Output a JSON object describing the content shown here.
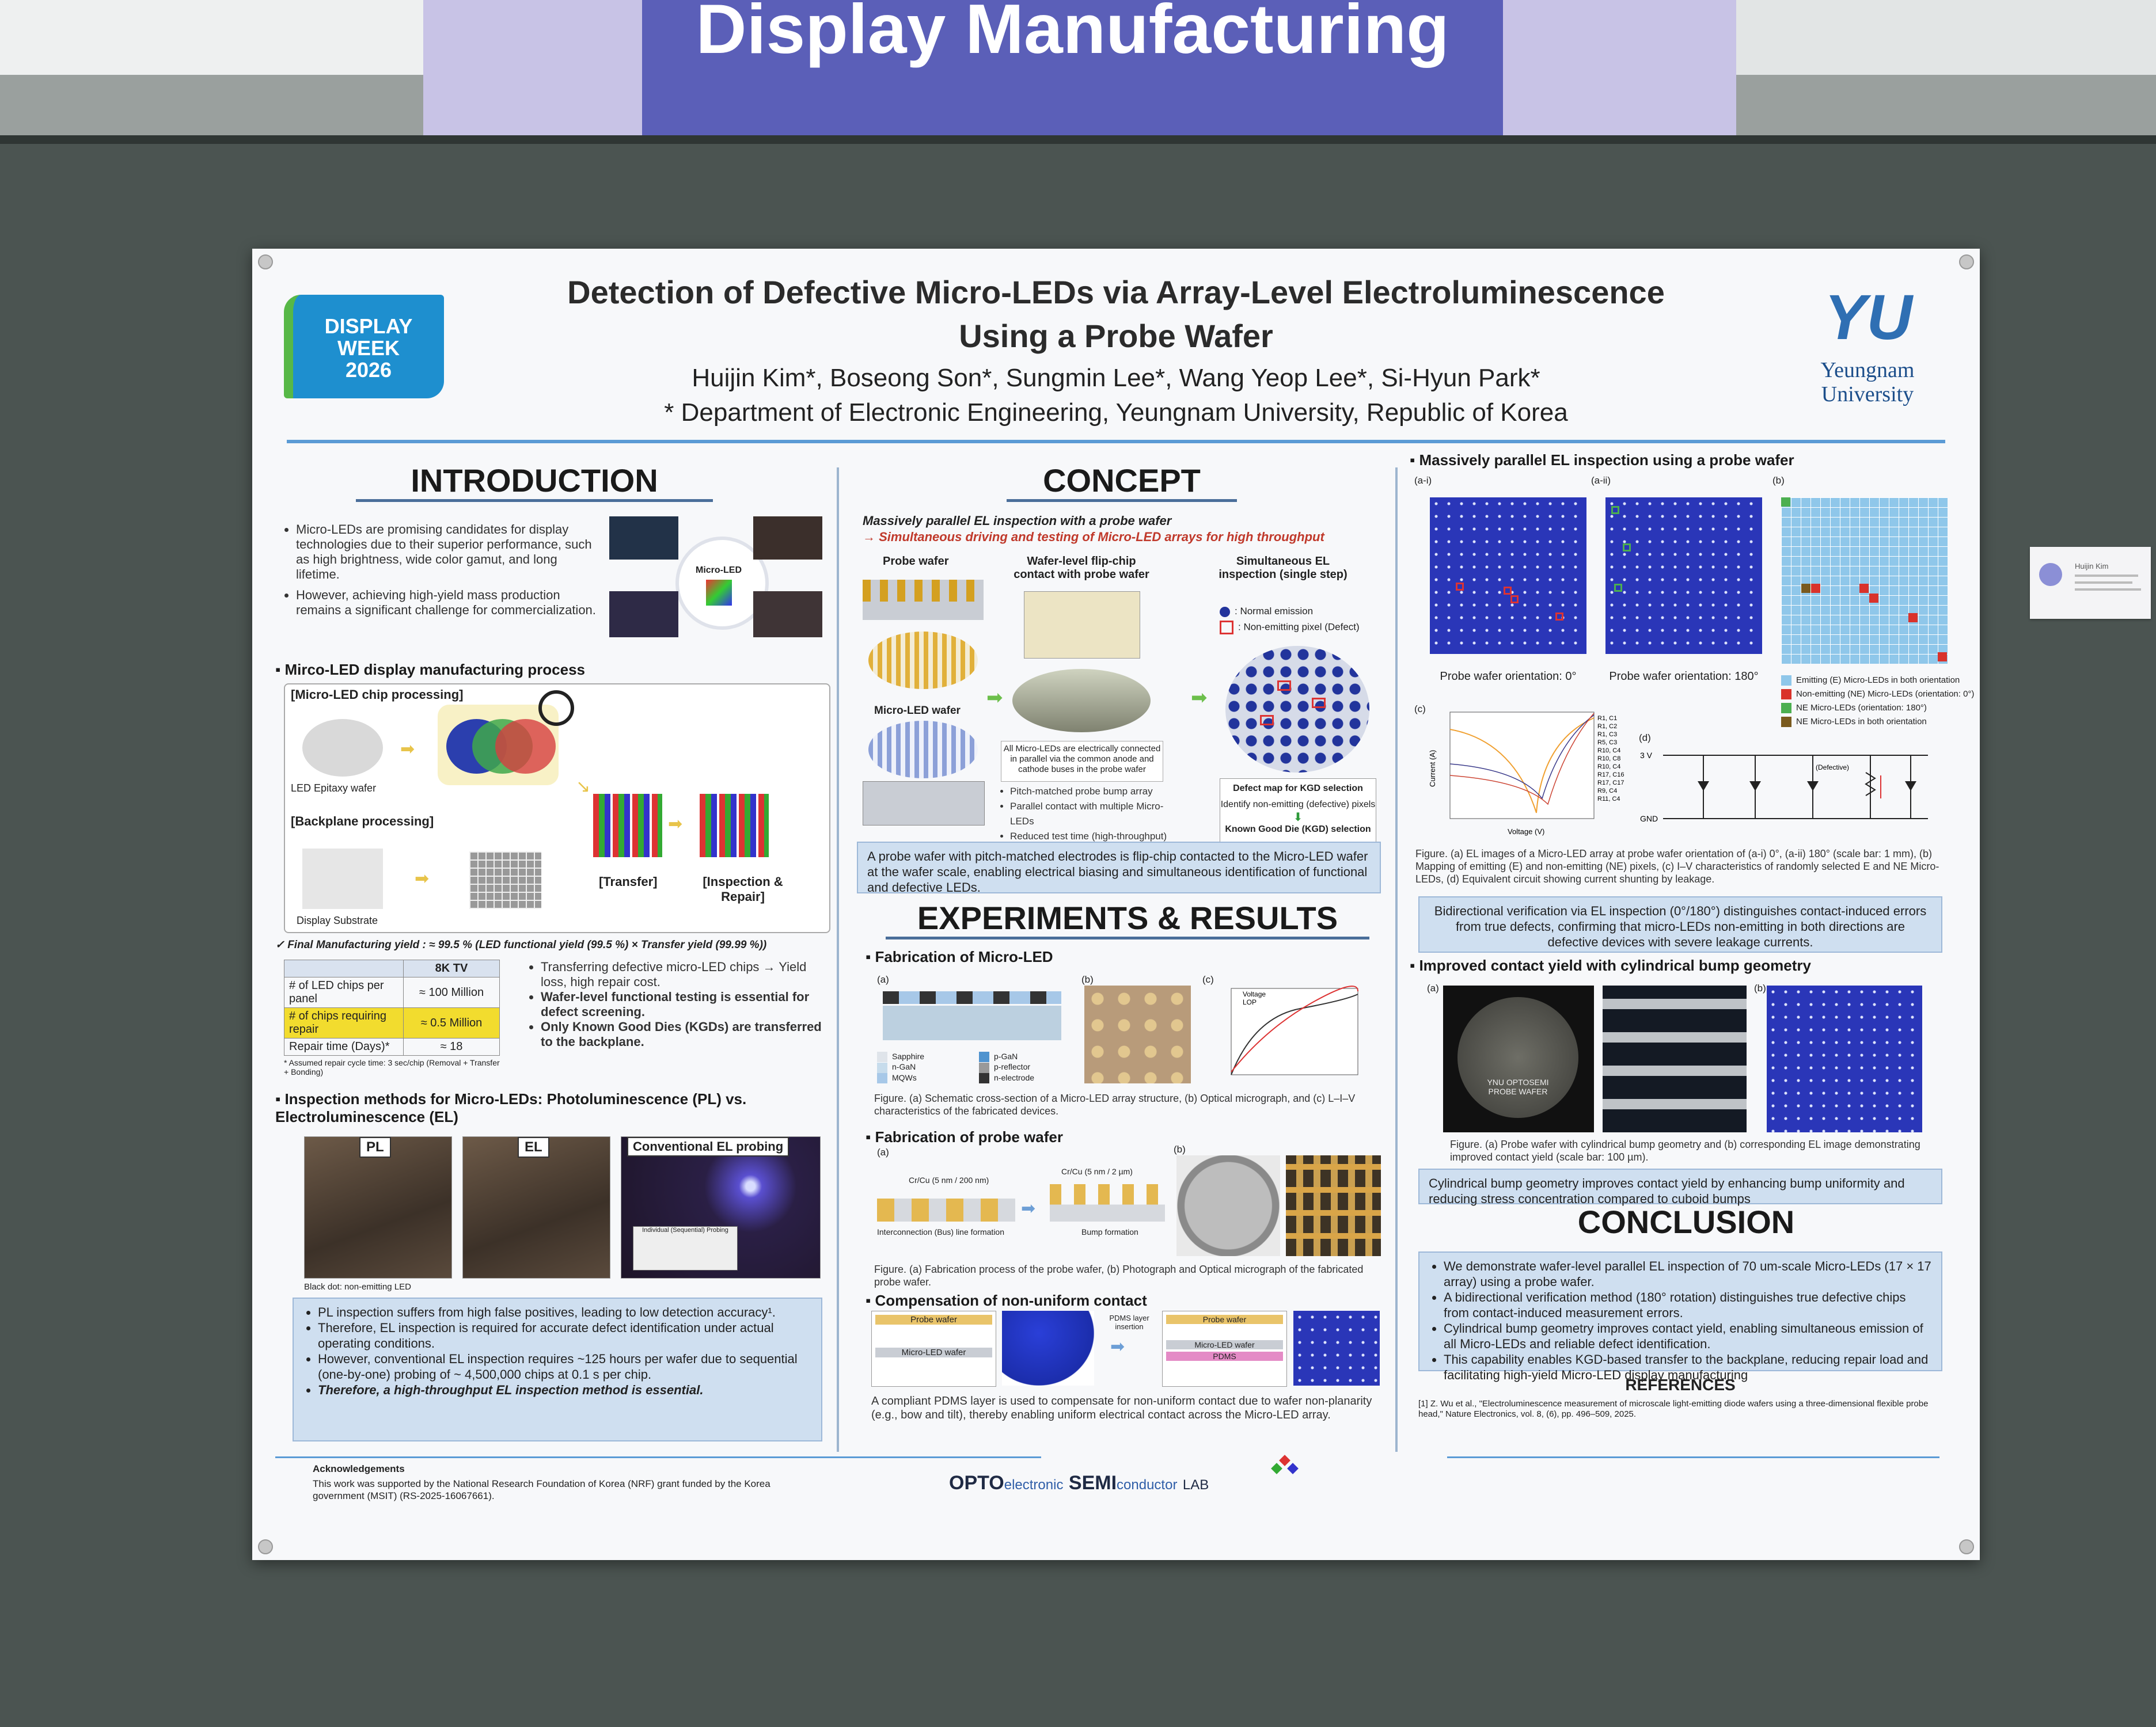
{
  "banner": {
    "title": "Display Manufacturing"
  },
  "poster": {
    "title_line1": "Detection of Defective Micro-LEDs via Array-Level Electroluminescence",
    "title_line2": "Using a Probe Wafer",
    "authors": "Huijin Kim*, Boseong Son*, Sungmin Lee*, Wang Yeop Lee*, Si-Hyun Park*",
    "affiliation": "* Department of Electronic Engineering, Yeungnam University, Republic of Korea",
    "logo_left": [
      "DISPLAY",
      "WEEK",
      "2026"
    ],
    "logo_right_mark": "YU",
    "logo_right_name": [
      "Yeungnam",
      "University"
    ]
  },
  "introduction": {
    "heading": "INTRODUCTION",
    "bullets": [
      "Micro-LEDs are promising candidates for display technologies due to their superior performance, such as high brightness, wide color gamut, and long lifetime.",
      "However, achieving high-yield mass production remains a significant challenge for commercialization."
    ],
    "center_label": "Micro-LED",
    "process_heading": "Mirco-LED display manufacturing process",
    "chip_processing": "[Micro-LED chip processing]",
    "epitaxy_label": "LED Epitaxy wafer",
    "backplane_processing": "[Backplane processing]",
    "display_substrate": "Display Substrate",
    "transfer_label": "[Transfer]",
    "inspection_label": "[Inspection & Repair]",
    "final_yield": "✓ Final Manufacturing yield : ≈ 99.5 % (LED functional yield (99.5 %) × Transfer yield (99.99 %))",
    "table": {
      "header": [
        "",
        "8K TV"
      ],
      "rows": [
        [
          "# of LED chips per panel",
          "≈ 100 Million"
        ],
        [
          "# of chips requiring repair",
          "≈ 0.5 Million"
        ],
        [
          "Repair time (Days)*",
          "≈ 18"
        ]
      ],
      "footnote": "* Assumed repair cycle time: 3 sec/chip (Removal + Transfer + Bonding)"
    },
    "side_bullets": [
      "Transferring defective micro-LED chips → Yield loss, high repair cost.",
      "Wafer-level functional testing is essential for defect screening.",
      "Only Known Good Dies (KGDs) are transferred to the backplane."
    ],
    "inspection_heading": "Inspection methods for Micro-LEDs: Photoluminescence (PL) vs. Electroluminescence (EL)",
    "panel_labels": [
      "PL",
      "EL",
      "Conventional EL probing"
    ],
    "probing_label": "Individual (Sequential) Probing",
    "black_dot_note": "Black dot: non-emitting LED",
    "box_bullets": [
      "PL inspection suffers from high false positives, leading to low detection accuracy¹.",
      "Therefore, EL inspection is required for accurate defect identification under actual operating conditions.",
      "However, conventional EL inspection requires ~125 hours per wafer due to sequential (one-by-one) probing of ~ 4,500,000 chips at 0.1 s per chip.",
      "Therefore, a high-throughput EL inspection method is essential."
    ],
    "ack_title": "Acknowledgements",
    "ack_text": "This work was supported by the National Research Foundation of Korea (NRF) grant funded by the Korea government (MSIT) (RS-2025-16067661)."
  },
  "concept": {
    "heading": "CONCEPT",
    "subtitle1": "Massively parallel EL inspection with a probe wafer",
    "subtitle2": "→ Simultaneous driving and testing of Micro-LED arrays for high throughput",
    "col_labels": [
      "Probe wafer",
      "Wafer-level flip-chip contact with probe wafer",
      "Simultaneous EL inspection (single step)"
    ],
    "microled_wafer": "Micro-LED wafer",
    "legend_normal": ": Normal emission",
    "legend_defect": ": Non-emitting pixel (Defect)",
    "note": "All Micro-LEDs are electrically connected in parallel via the common anode and cathode buses in the probe wafer",
    "features": [
      "Pitch-matched probe bump array",
      "Parallel contact with multiple Micro-LEDs",
      "Reduced test time (high-throughput)"
    ],
    "kgd_title": "Defect map for KGD selection",
    "kgd_step": "Identify non-emitting (defective) pixels",
    "kgd_result": "Known Good Die (KGD) selection",
    "summary": "A probe wafer with pitch-matched electrodes is flip-chip contacted to the Micro-LED wafer at the wafer scale, enabling electrical biasing and simultaneous identification of functional and defective LEDs."
  },
  "experiments": {
    "heading": "EXPERIMENTS & RESULTS",
    "fab_led": "Fabrication of Micro-LED",
    "layers": [
      "Sapphire",
      "n-GaN",
      "MQWs",
      "p-GaN",
      "p-reflector",
      "n-electrode"
    ],
    "liv_legend": [
      "Voltage",
      "LOP"
    ],
    "fig1": "Figure. (a) Schematic cross-section of a Micro-LED array structure, (b) Optical micrograph, and (c) L–I–V characteristics of the fabricated devices.",
    "fab_probe": "Fabrication of probe wafer",
    "probe_labels": [
      "Cr/Cu (5 nm / 200 nm)",
      "Cr/Cu (5 nm / 2 µm)",
      "Interconnection (Bus) line formation",
      "Bump formation"
    ],
    "fig2": "Figure. (a) Fabrication process of the probe wafer, (b) Photograph and Optical micrograph of the fabricated probe wafer.",
    "compensation": "Compensation of non-uniform contact",
    "comp_labels": [
      "Probe wafer",
      "Micro-LED wafer",
      "PDMS layer insertion",
      "Probe wafer",
      "Micro-LED wafer",
      "PDMS"
    ],
    "comp_text": "A compliant PDMS layer is used to compensate for non-uniform contact due to wafer non-planarity (e.g., bow and tilt), thereby enabling uniform electrical contact across the Micro-LED array."
  },
  "results": {
    "heading": "Massively parallel EL inspection using a probe wafer",
    "panel_tags": [
      "(a-i)",
      "(a-ii)",
      "(b)",
      "(c)",
      "(d)"
    ],
    "orient0": "Probe wafer orientation: 0°",
    "orient180": "Probe wafer orientation: 180°",
    "map_legend": [
      "Emitting (E) Micro-LEDs in both orientation",
      "Non-emitting (NE) Micro-LEDs (orientation: 0°)",
      "NE Micro-LEDs (orientation: 180°)",
      "NE Micro-LEDs in both orientation"
    ],
    "map_legend_colors": [
      "#8fc7ea",
      "#d9322b",
      "#4caf50",
      "#7a5a1e"
    ],
    "iv_legend": [
      "R1, C1",
      "R1, C2",
      "R1, C3",
      "R5, C3",
      "R10, C4",
      "R10, C8",
      "R10, C4",
      "R17, C16",
      "R17, C17",
      "R9, C4",
      "R11, C4"
    ],
    "iv_xlabel": "Voltage (V)",
    "iv_ylabel": "Current (A)",
    "circuit_labels": [
      "3 V",
      "GND",
      "(Defective)"
    ],
    "fig3": "Figure. (a) EL images of a Micro-LED array at probe wafer orientation of (a-i) 0°, (a-ii) 180° (scale bar: 1 mm), (b) Mapping of emitting (E) and non-emitting (NE) pixels, (c) I–V characteristics of randomly selected E and NE Micro-LEDs, (d) Equivalent circuit showing current shunting by leakage.",
    "bidir_box": "Bidirectional verification via EL inspection (0°/180°) distinguishes contact-induced errors from true defects, confirming that micro-LEDs non-emitting in both directions are defective devices with severe leakage currents.",
    "bump_heading": "Improved contact yield with cylindrical bump geometry",
    "wafer_text": [
      "YNU OPTOSEMI",
      "PROBE WAFER"
    ],
    "fig4": "Figure. (a) Probe wafer with cylindrical bump geometry and (b) corresponding EL image demonstrating improved contact yield (scale bar: 100 µm).",
    "bump_box": "Cylindrical bump geometry improves contact yield by enhancing bump uniformity and reducing stress concentration compared to cuboid bumps"
  },
  "conclusion": {
    "heading": "CONCLUSION",
    "bullets": [
      "We demonstrate wafer-level parallel EL inspection of 70 um-scale Micro-LEDs (17 × 17 array) using a probe wafer.",
      "A bidirectional verification method (180° rotation) distinguishes true defective chips from contact-induced measurement errors.",
      "Cylindrical bump geometry improves contact yield, enabling simultaneous emission of all Micro-LEDs and reliable defect identification.",
      "This capability enables KGD-based transfer to the backplane, reducing repair load and facilitating high-yield Micro-LED display manufacturing"
    ],
    "ref_heading": "REFERENCES",
    "ref1": "[1]   Z. Wu et al., \"Electroluminescence measurement of microscale light-emitting diode wafers using a three-dimensional flexible probe head,\" Nature Electronics, vol. 8, (6), pp. 496–509, 2025."
  },
  "lab": {
    "opto": "OPTO",
    "electronic": "electronic",
    "semi": "SEMI",
    "conductor": "conductor",
    "lab": "LAB"
  },
  "card": {
    "name": "Huijin Kim"
  }
}
